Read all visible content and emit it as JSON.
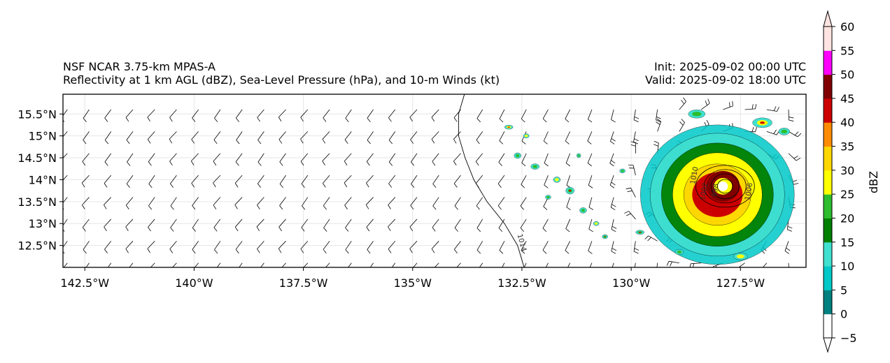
{
  "title": {
    "model": "NSF NCAR 3.75-km MPAS-A",
    "fields": "Reflectivity at 1 km AGL (dBZ), Sea-Level Pressure (hPa), and 10-m Winds (kt)",
    "init": "Init: 2025-09-02 00:00 UTC",
    "valid": "Valid: 2025-09-02 18:00 UTC"
  },
  "map": {
    "lon_range": [
      -143.0,
      -126.0
    ],
    "lat_range": [
      12.0,
      15.95
    ],
    "lon_ticks": [
      {
        "value": -142.5,
        "label": "142.5°W"
      },
      {
        "value": -140.0,
        "label": "140°W"
      },
      {
        "value": -137.5,
        "label": "137.5°W"
      },
      {
        "value": -135.0,
        "label": "135°W"
      },
      {
        "value": -132.5,
        "label": "132.5°W"
      },
      {
        "value": -130.0,
        "label": "130°W"
      },
      {
        "value": -127.5,
        "label": "127.5°W"
      }
    ],
    "lat_ticks": [
      {
        "value": 15.5,
        "label": "15.5°N"
      },
      {
        "value": 15.0,
        "label": "15°N"
      },
      {
        "value": 14.5,
        "label": "14.5°N"
      },
      {
        "value": 14.0,
        "label": "14°N"
      },
      {
        "value": 13.5,
        "label": "13.5°N"
      },
      {
        "value": 13.0,
        "label": "13°N"
      },
      {
        "value": 12.5,
        "label": "12.5°N"
      }
    ],
    "storm_center": {
      "lon": -127.9,
      "lat": 13.85
    },
    "isobar_labels": [
      "1014",
      "1010",
      "1006",
      "1002",
      "998"
    ]
  },
  "colorbar": {
    "label": "dBZ",
    "levels": [
      -5,
      0,
      5,
      10,
      15,
      20,
      25,
      30,
      35,
      40,
      45,
      50,
      55,
      60
    ],
    "colors": [
      "#ffffff",
      "#008080",
      "#00c8c8",
      "#40e0d0",
      "#008000",
      "#2ebd2e",
      "#ffff00",
      "#ffd700",
      "#ff8c00",
      "#cc0000",
      "#800000",
      "#ff00ff",
      "#ffe4e1"
    ],
    "tick_labels": [
      "−5",
      "0",
      "5",
      "10",
      "15",
      "20",
      "25",
      "30",
      "35",
      "40",
      "45",
      "50",
      "55",
      "60"
    ]
  }
}
